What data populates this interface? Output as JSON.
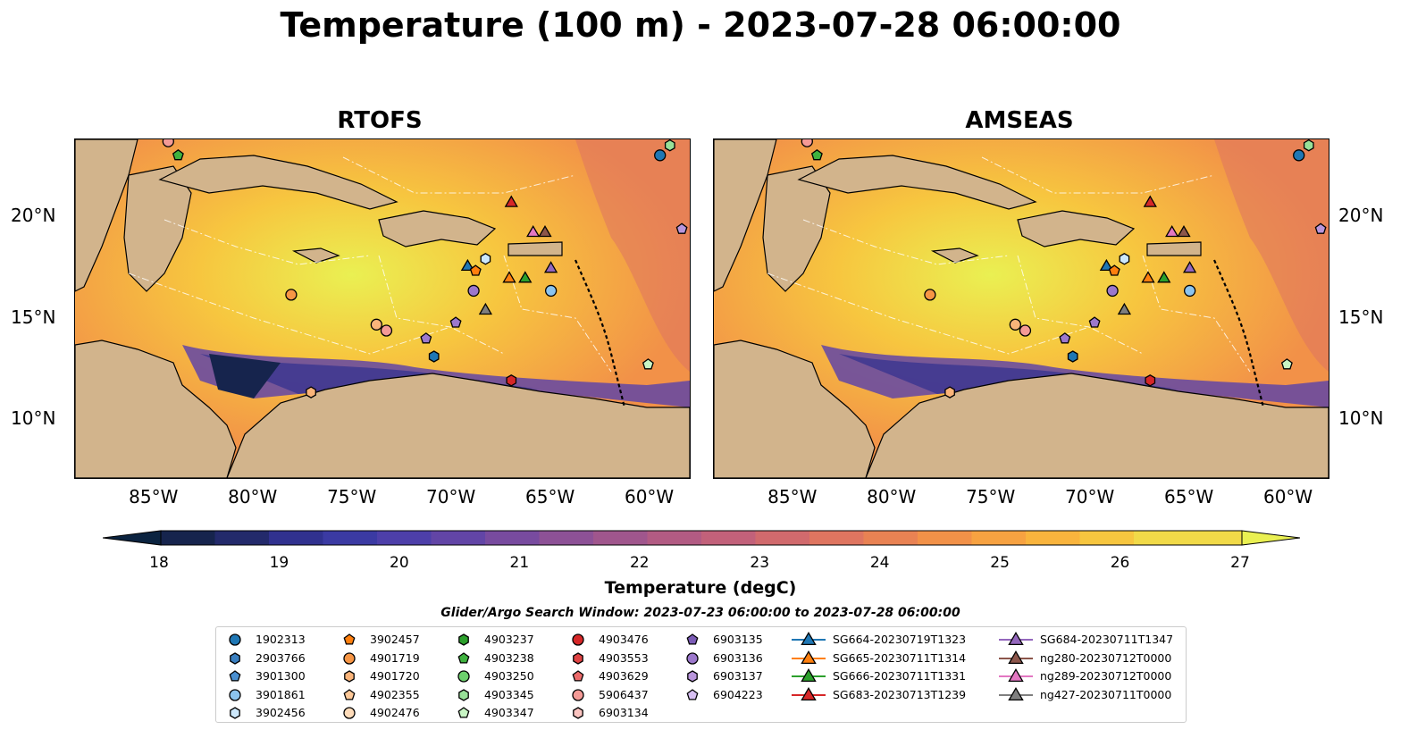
{
  "title": "Temperature (100 m) - 2023-07-28 06:00:00",
  "panels": [
    {
      "title": "RTOFS"
    },
    {
      "title": "AMSEAS"
    }
  ],
  "lat_labels": [
    "20°N",
    "15°N",
    "10°N"
  ],
  "lon_labels": [
    "85°W",
    "80°W",
    "75°W",
    "70°W",
    "65°W",
    "60°W"
  ],
  "colorbar": {
    "label": "Temperature (degC)",
    "ticks": [
      "18",
      "19",
      "20",
      "21",
      "22",
      "23",
      "24",
      "25",
      "26",
      "27"
    ],
    "min": 18,
    "max": 27,
    "colors": [
      "#0b2340",
      "#16244d",
      "#232a6b",
      "#30318f",
      "#3b3aa3",
      "#4d3fa9",
      "#6245a6",
      "#784b9f",
      "#8d5196",
      "#a0568d",
      "#b25b83",
      "#c2617a",
      "#d16a6d",
      "#df7560",
      "#e98253",
      "#f29148",
      "#f7a241",
      "#f9b43d",
      "#f7c63f",
      "#f1da48",
      "#eaf052"
    ]
  },
  "search_window": "Glider/Argo Search Window: 2023-07-23 06:00:00 to 2023-07-28 06:00:00",
  "legend": {
    "columns": [
      [
        {
          "label": "1902313",
          "marker": "circle",
          "color": "#1f77b4"
        },
        {
          "label": "2903766",
          "marker": "hexagon",
          "color": "#3a7fc0"
        },
        {
          "label": "3901300",
          "marker": "pentagon",
          "color": "#4a8fd0"
        },
        {
          "label": "3901861",
          "marker": "circle",
          "color": "#8cc4ee"
        },
        {
          "label": "3902456",
          "marker": "hexagon",
          "color": "#cde8fb"
        }
      ],
      [
        {
          "label": "3902457",
          "marker": "pentagon",
          "color": "#ff7f0e"
        },
        {
          "label": "4901719",
          "marker": "circle",
          "color": "#f79645"
        },
        {
          "label": "4901720",
          "marker": "hexagon",
          "color": "#fab47a"
        },
        {
          "label": "4902355",
          "marker": "pentagon",
          "color": "#fdc898"
        },
        {
          "label": "4902476",
          "marker": "circle",
          "color": "#ffdcba"
        }
      ],
      [
        {
          "label": "4903237",
          "marker": "hexagon",
          "color": "#2ca02c"
        },
        {
          "label": "4903238",
          "marker": "pentagon",
          "color": "#3fb23f"
        },
        {
          "label": "4903250",
          "marker": "circle",
          "color": "#6dd06d"
        },
        {
          "label": "4903345",
          "marker": "hexagon",
          "color": "#98e098"
        },
        {
          "label": "4903347",
          "marker": "pentagon",
          "color": "#c8f5c4"
        }
      ],
      [
        {
          "label": "4903476",
          "marker": "circle",
          "color": "#d62728"
        },
        {
          "label": "4903553",
          "marker": "hexagon",
          "color": "#e04344"
        },
        {
          "label": "4903629",
          "marker": "pentagon",
          "color": "#ec6a6a"
        },
        {
          "label": "5906437",
          "marker": "circle",
          "color": "#f49a96"
        },
        {
          "label": "6903134",
          "marker": "hexagon",
          "color": "#fbc4c0"
        }
      ],
      [
        {
          "label": "6903135",
          "marker": "pentagon",
          "color": "#7b5bb6"
        },
        {
          "label": "6903136",
          "marker": "circle",
          "color": "#9c78cc"
        },
        {
          "label": "6903137",
          "marker": "hexagon",
          "color": "#b996dc"
        },
        {
          "label": "6904223",
          "marker": "pentagon",
          "color": "#d7bff2"
        }
      ],
      [
        {
          "label": "SG664-20230719T1323",
          "marker": "triangle",
          "color": "#1f77b4"
        },
        {
          "label": "SG665-20230711T1314",
          "marker": "triangle",
          "color": "#ff7f0e"
        },
        {
          "label": "SG666-20230711T1331",
          "marker": "triangle",
          "color": "#2ca02c"
        },
        {
          "label": "SG683-20230713T1239",
          "marker": "triangle",
          "color": "#d62728"
        }
      ],
      [
        {
          "label": "SG684-20230711T1347",
          "marker": "triangle",
          "color": "#9467bd"
        },
        {
          "label": "ng280-20230712T0000",
          "marker": "triangle",
          "color": "#8c564b"
        },
        {
          "label": "ng289-20230712T0000",
          "marker": "triangle",
          "color": "#e377c2"
        },
        {
          "label": "ng427-20230711T0000",
          "marker": "triangle",
          "color": "#7f7f7f"
        }
      ]
    ]
  },
  "map_extent": {
    "lon": [
      -89,
      -58
    ],
    "lat": [
      7,
      24
    ]
  },
  "observations": [
    {
      "marker": "circle",
      "color": "#1f77b4",
      "lon": -59.5,
      "lat": 23.2
    },
    {
      "marker": "hexagon",
      "color": "#98e098",
      "lon": -59.0,
      "lat": 23.7
    },
    {
      "marker": "pentagon",
      "color": "#3fb23f",
      "lon": -83.8,
      "lat": 23.2
    },
    {
      "marker": "circle",
      "color": "#f49a96",
      "lon": -84.3,
      "lat": 23.9
    },
    {
      "marker": "pentagon",
      "color": "#b996dc",
      "lon": -58.4,
      "lat": 19.5
    },
    {
      "marker": "circle",
      "color": "#f79645",
      "lon": -78.1,
      "lat": 16.2
    },
    {
      "marker": "circle",
      "color": "#fab47a",
      "lon": -73.8,
      "lat": 14.7
    },
    {
      "marker": "circle",
      "color": "#f49a96",
      "lon": -73.3,
      "lat": 14.4
    },
    {
      "marker": "pentagon",
      "color": "#9c78cc",
      "lon": -71.3,
      "lat": 14.0
    },
    {
      "marker": "pentagon",
      "color": "#9c78cc",
      "lon": -69.8,
      "lat": 14.8
    },
    {
      "marker": "hexagon",
      "color": "#1f77b4",
      "lon": -70.9,
      "lat": 13.1
    },
    {
      "marker": "hexagon",
      "color": "#fab47a",
      "lon": -77.1,
      "lat": 11.3
    },
    {
      "marker": "hexagon",
      "color": "#d62728",
      "lon": -67.0,
      "lat": 11.9
    },
    {
      "marker": "pentagon",
      "color": "#c8f5c4",
      "lon": -60.1,
      "lat": 12.7
    },
    {
      "marker": "circle",
      "color": "#9c78cc",
      "lon": -68.9,
      "lat": 16.4
    },
    {
      "marker": "circle",
      "color": "#8cc4ee",
      "lon": -65.0,
      "lat": 16.4
    },
    {
      "marker": "hexagon",
      "color": "#cde8fb",
      "lon": -68.3,
      "lat": 18.0
    },
    {
      "marker": "triangle",
      "color": "#1f77b4",
      "lon": -69.2,
      "lat": 17.6
    },
    {
      "marker": "pentagon",
      "color": "#ff7f0e",
      "lon": -68.8,
      "lat": 17.4
    },
    {
      "marker": "triangle",
      "color": "#d62728",
      "lon": -67.0,
      "lat": 20.8
    },
    {
      "marker": "triangle",
      "color": "#ff7f0e",
      "lon": -67.1,
      "lat": 17.0
    },
    {
      "marker": "triangle",
      "color": "#2ca02c",
      "lon": -66.3,
      "lat": 17.0
    },
    {
      "marker": "triangle",
      "color": "#e377c2",
      "lon": -65.9,
      "lat": 19.3
    },
    {
      "marker": "triangle",
      "color": "#8c564b",
      "lon": -65.3,
      "lat": 19.3
    },
    {
      "marker": "triangle",
      "color": "#9467bd",
      "lon": -65.0,
      "lat": 17.5
    },
    {
      "marker": "triangle",
      "color": "#7f7f7f",
      "lon": -68.3,
      "lat": 15.4
    }
  ]
}
